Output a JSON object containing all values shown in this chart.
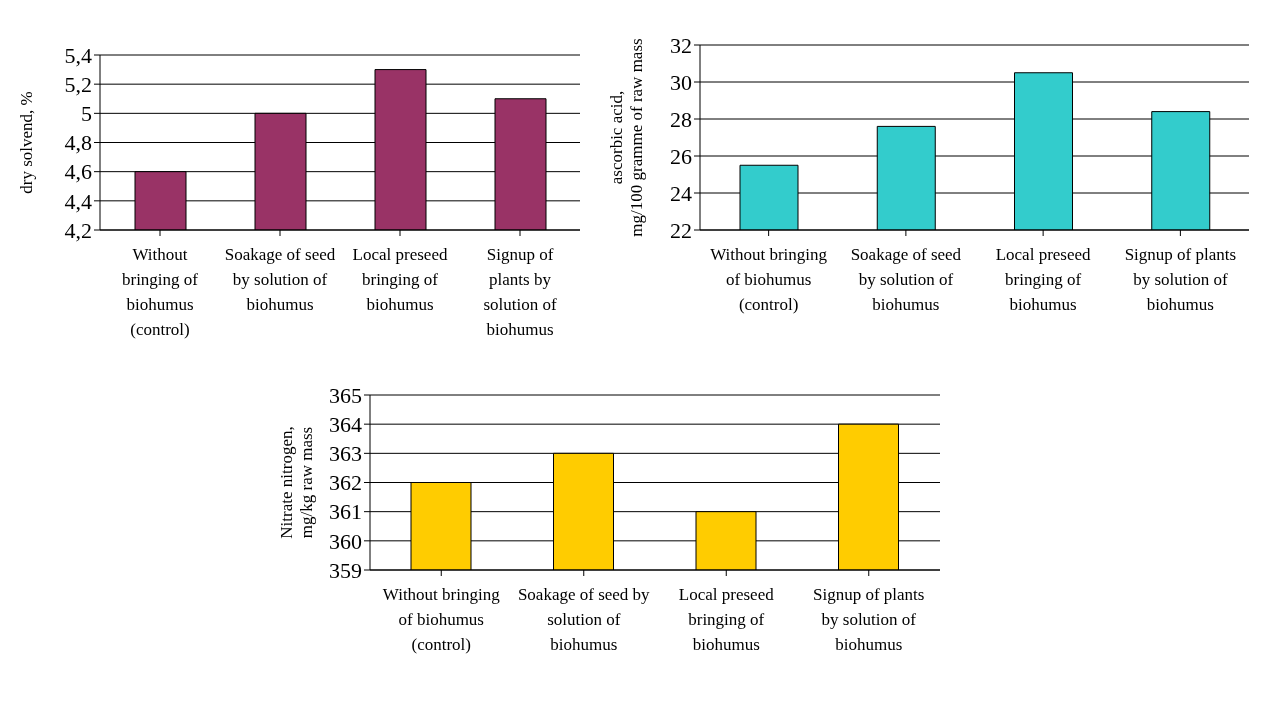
{
  "chart_data": [
    {
      "type": "bar",
      "ylabel": "dry solvend, %",
      "categories": [
        "Without bringing of biohumus (control)",
        "Soakage of seed by solution of biohumus",
        "Local preseed bringing of biohumus",
        "Signup of plants by solution of biohumus"
      ],
      "values": [
        4.6,
        5.0,
        5.3,
        5.1
      ],
      "color": "#993366",
      "ylim": [
        4.2,
        5.4
      ],
      "yticks": [
        {
          "value": 4.2,
          "label": "4,2"
        },
        {
          "value": 4.4,
          "label": "4,4"
        },
        {
          "value": 4.6,
          "label": "4,6"
        },
        {
          "value": 4.8,
          "label": "4,8"
        },
        5,
        {
          "value": 5.2,
          "label": "5,2"
        },
        {
          "value": 5.4,
          "label": "5,4"
        }
      ],
      "grid": "y"
    },
    {
      "type": "bar",
      "ylabel": "ascorbic acid,\nmg/100 gramme of raw mass",
      "categories": [
        "Without bringing of biohumus (control)",
        "Soakage of seed by solution of biohumus",
        "Local preseed bringing of biohumus",
        "Signup of plants by solution of biohumus"
      ],
      "values": [
        25.5,
        27.6,
        30.5,
        28.4
      ],
      "color": "#33cccc",
      "ylim": [
        22,
        32
      ],
      "yticks": [
        22,
        24,
        26,
        28,
        30,
        32
      ],
      "grid": "y"
    },
    {
      "type": "bar",
      "ylabel": "Nitrate nitrogen,\nmg/kg raw mass",
      "categories": [
        "Without bringing of biohumus (control)",
        "Soakage of seed by solution of biohumus",
        "Local preseed bringing of biohumus",
        "Signup of plants by solution of biohumus"
      ],
      "values": [
        362,
        363,
        361,
        364
      ],
      "color": "#ffcc00",
      "ylim": [
        359,
        365
      ],
      "yticks": [
        359,
        360,
        361,
        362,
        363,
        364,
        365
      ],
      "grid": "y"
    }
  ]
}
